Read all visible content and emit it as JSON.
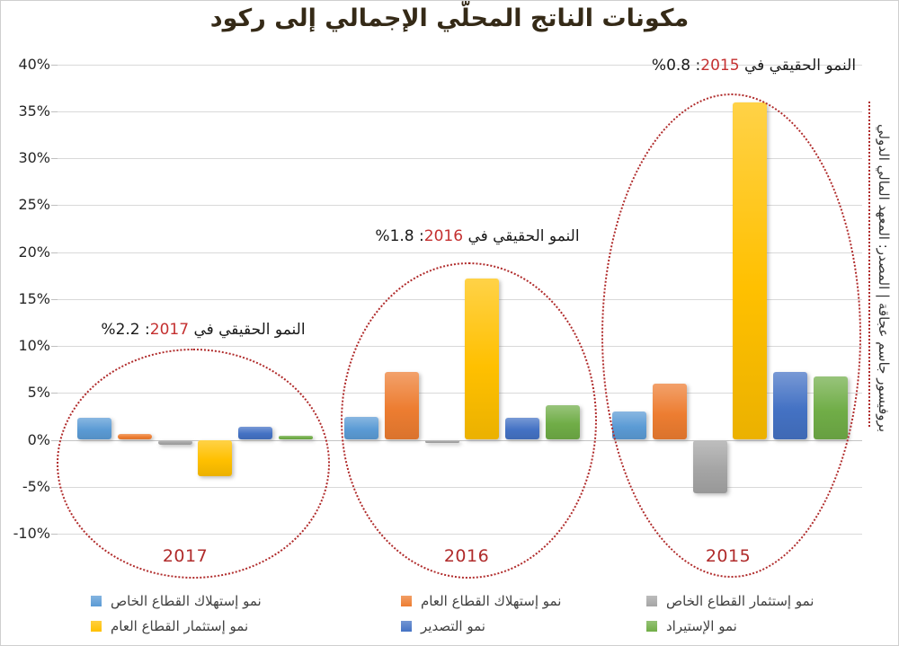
{
  "chart_data": {
    "type": "bar",
    "title": "مكونات الناتج المحلّي الإجمالي إلى ركود",
    "categories": [
      "2017",
      "2016",
      "2015"
    ],
    "series": [
      {
        "name": "نمو إستهلاك القطاع الخاص",
        "color": "#5B9BD5",
        "values": [
          2.3,
          2.4,
          3.0
        ]
      },
      {
        "name": "نمو إستهلاك القطاع العام",
        "color": "#ED7D31",
        "values": [
          0.6,
          7.2,
          6.0
        ]
      },
      {
        "name": "نمو إستثمار القطاع الخاص",
        "color": "#A5A5A5",
        "values": [
          -0.5,
          -0.3,
          -5.7
        ]
      },
      {
        "name": "نمو إستثمار القطاع العام",
        "color": "#FFC000",
        "values": [
          -3.9,
          17.2,
          35.9
        ]
      },
      {
        "name": "نمو التصدير",
        "color": "#4472C4",
        "values": [
          1.4,
          2.3,
          7.2
        ]
      },
      {
        "name": "نمو الإستيراد",
        "color": "#70AD47",
        "values": [
          0.4,
          3.7,
          6.7
        ]
      }
    ],
    "ylim": [
      -10,
      40
    ],
    "ytick_step": 5,
    "ytick_labels": [
      "40%",
      "35%",
      "30%",
      "25%",
      "20%",
      "15%",
      "10%",
      "5%",
      "0%",
      "-5%",
      "-10%"
    ],
    "grid": true,
    "legend_position": "bottom",
    "legend_columns_order_note": "3 columns x 2 rows: col1=[series0,series3], col2=[series1,series4], col3=[series2,series5]"
  },
  "annotations": [
    {
      "prefix": "النمو الحقيقي في",
      "year": "2017",
      "suffix": ": 2.2%"
    },
    {
      "prefix": "النمو الحقيقي في",
      "year": "2016",
      "suffix": ": 1.8%"
    },
    {
      "prefix": "النمو الحقيقي في",
      "year": "2015",
      "suffix": ": 0.8%"
    }
  ],
  "year_labels": [
    "2017",
    "2016",
    "2015"
  ],
  "source_text": "بروفيسور جاسم عجاقة | المصدر: المعهد المالي الدولي",
  "colors": {
    "annotation_year_red": "#C43030",
    "year_label_red": "#B02B2B",
    "ellipse_dotted_red": "#B02B2B",
    "gridline": "#D9D9D9",
    "title_color": "#352A17"
  }
}
